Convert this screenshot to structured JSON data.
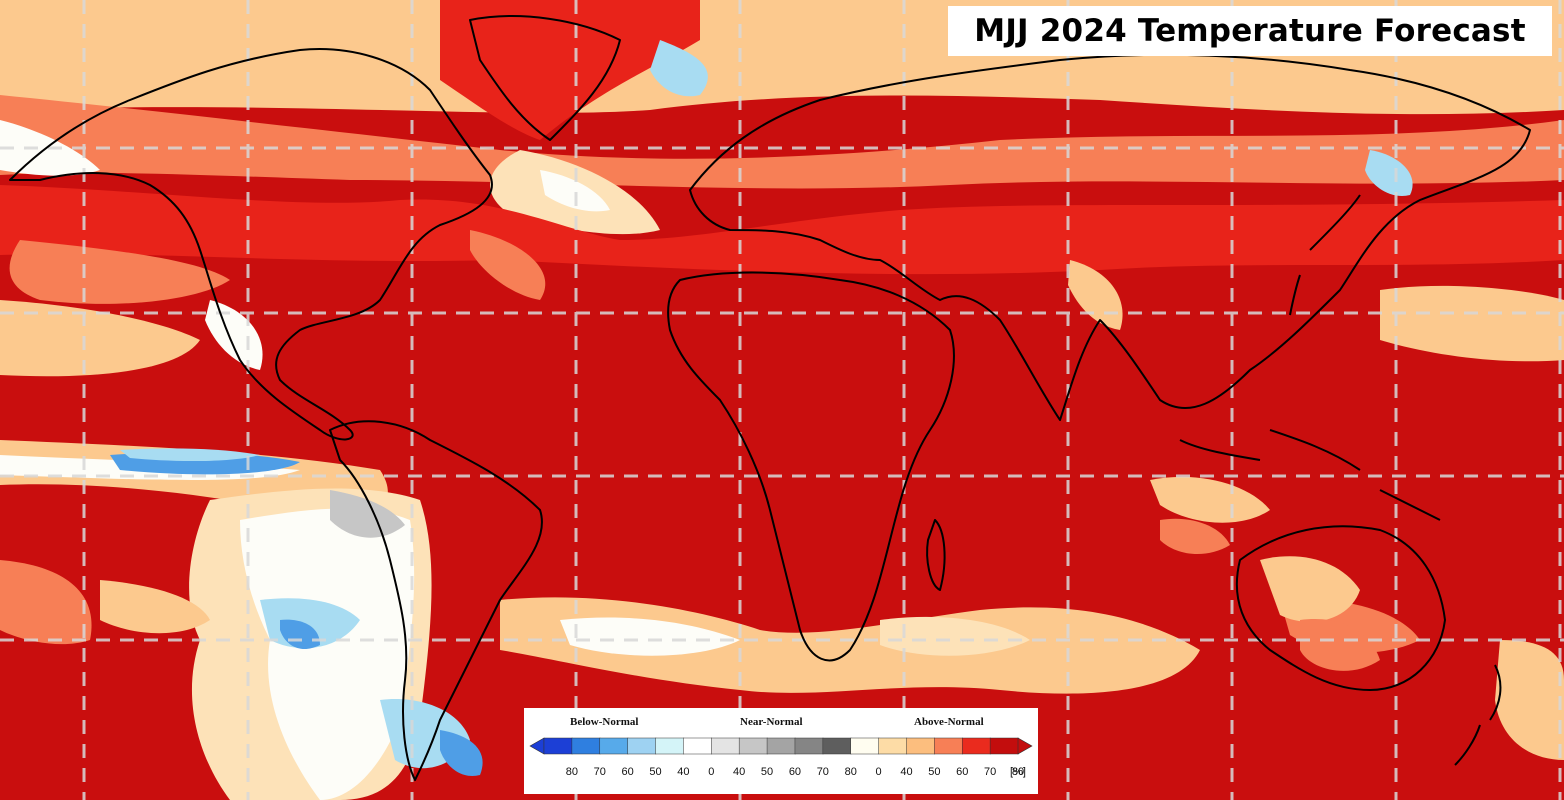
{
  "title": "MJJ 2024 Temperature Forecast",
  "legend": {
    "headers": [
      "Below-Normal",
      "Near-Normal",
      "Above-Normal"
    ],
    "ticks": [
      "80",
      "70",
      "60",
      "50",
      "40",
      "0",
      "40",
      "50",
      "60",
      "70",
      "80",
      "0",
      "40",
      "50",
      "60",
      "70",
      "80"
    ],
    "unit": "[%]",
    "below_colors": [
      "#1c3fd6",
      "#2f7fe0",
      "#57aaea",
      "#9ed2f2",
      "#d4f4f8"
    ],
    "near_colors": [
      "#ffffff",
      "#e4e4e4",
      "#c6c6c6",
      "#a4a4a4",
      "#858585",
      "#5e5e5e"
    ],
    "above_colors": [
      "#fffdf0",
      "#fddca6",
      "#fcbe7e",
      "#f77f56",
      "#ea2b1e",
      "#c30d0d"
    ]
  },
  "map": {
    "graticule": "dashed",
    "colors": {
      "deep_red": "#c90e0e",
      "red": "#e8231a",
      "orange": "#f77f56",
      "tan": "#fcc98e",
      "light_tan": "#fde2b8",
      "near_normal_white": "#fdfdf8",
      "grey": "#c6c6c6",
      "light_blue": "#a8dcf2",
      "blue": "#4f9ee6",
      "coastline": "#000000",
      "graticule_line": "#d8d8d8"
    }
  }
}
